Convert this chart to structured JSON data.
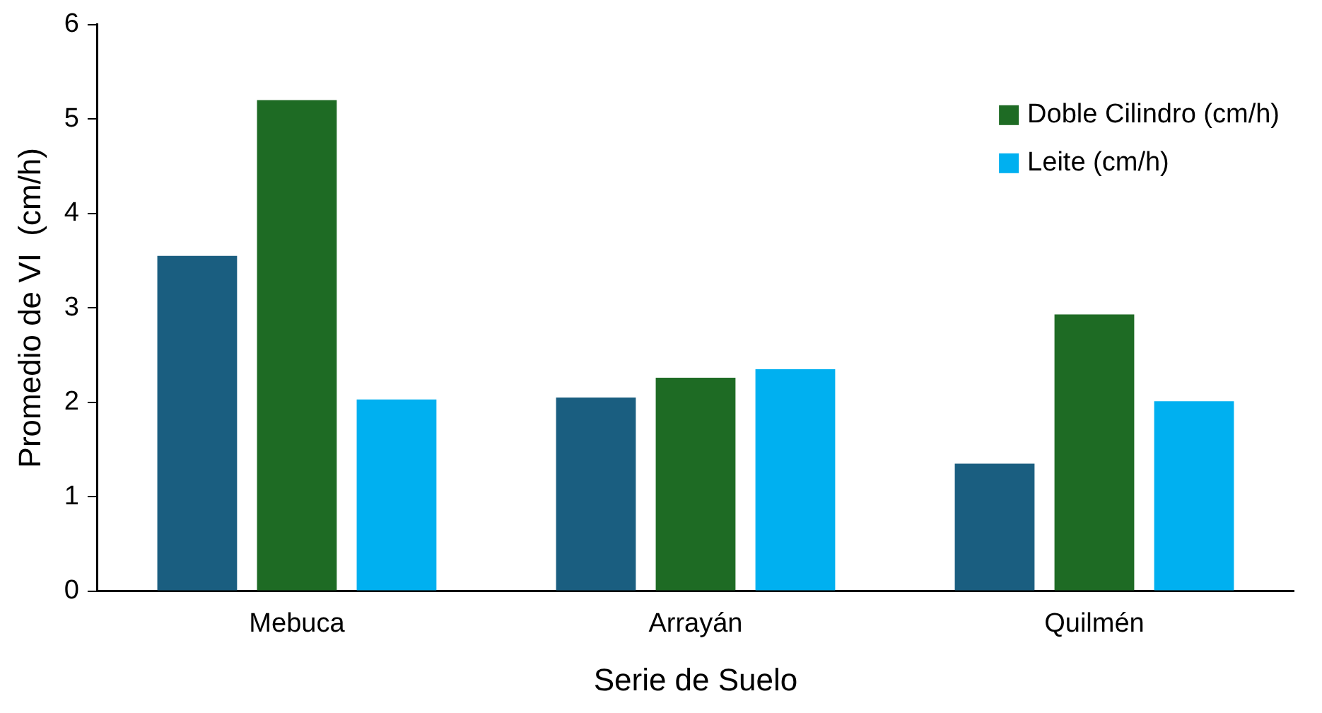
{
  "chart_data": {
    "type": "bar",
    "xlabel": "Serie de Suelo",
    "ylabel": "Promedio de VI  (cm/h)",
    "categories": [
      "Mebuca",
      "Arrayán",
      "Quilmén"
    ],
    "series": [
      {
        "color": "#1a5e80",
        "values": [
          3.55,
          2.05,
          1.35
        ]
      },
      {
        "name": "Doble Cilindro (cm/h)",
        "color": "#1e6b24",
        "values": [
          5.2,
          2.26,
          2.93
        ]
      },
      {
        "name": "Leite (cm/h)",
        "color": "#00b0f0",
        "values": [
          2.03,
          2.35,
          2.01
        ]
      }
    ],
    "ylim": [
      0,
      6
    ],
    "yticks": [
      0,
      1,
      2,
      3,
      4,
      5,
      6
    ],
    "grid": false,
    "legend": "top right"
  }
}
